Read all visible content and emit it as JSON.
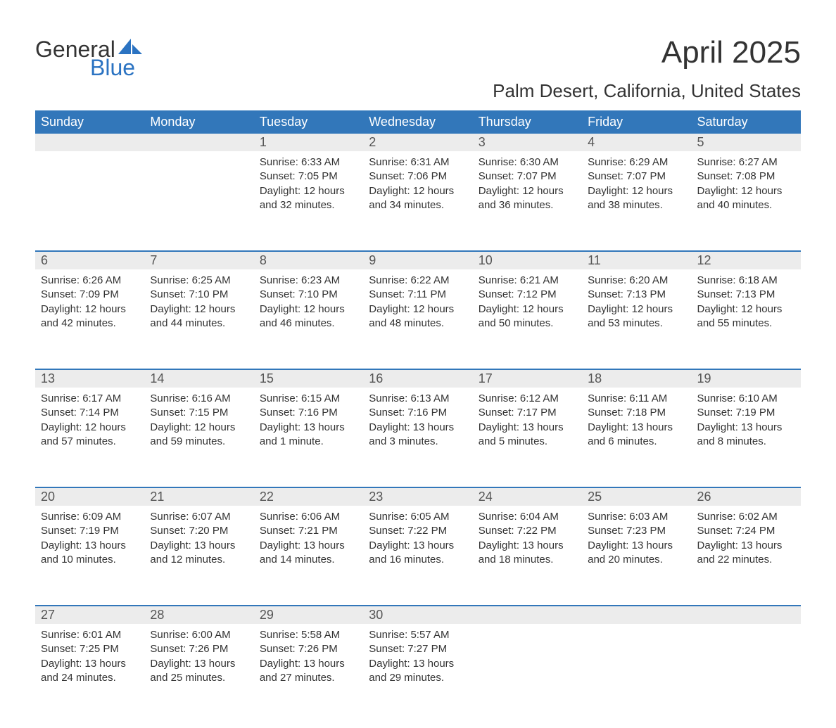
{
  "logo": {
    "word1": "General",
    "word2": "Blue"
  },
  "title": "April 2025",
  "location": "Palm Desert, California, United States",
  "colors": {
    "header_bg": "#3277ba",
    "header_text": "#ffffff",
    "daynum_bg": "#ececec",
    "rule": "#3277ba",
    "logo_blue": "#2b73c2",
    "text": "#333333"
  },
  "day_headers": [
    "Sunday",
    "Monday",
    "Tuesday",
    "Wednesday",
    "Thursday",
    "Friday",
    "Saturday"
  ],
  "labels": {
    "sunrise": "Sunrise: ",
    "sunset": "Sunset: ",
    "daylight": "Daylight: "
  },
  "weeks": [
    [
      null,
      null,
      {
        "n": "1",
        "sunrise": "6:33 AM",
        "sunset": "7:05 PM",
        "daylight": "12 hours and 32 minutes."
      },
      {
        "n": "2",
        "sunrise": "6:31 AM",
        "sunset": "7:06 PM",
        "daylight": "12 hours and 34 minutes."
      },
      {
        "n": "3",
        "sunrise": "6:30 AM",
        "sunset": "7:07 PM",
        "daylight": "12 hours and 36 minutes."
      },
      {
        "n": "4",
        "sunrise": "6:29 AM",
        "sunset": "7:07 PM",
        "daylight": "12 hours and 38 minutes."
      },
      {
        "n": "5",
        "sunrise": "6:27 AM",
        "sunset": "7:08 PM",
        "daylight": "12 hours and 40 minutes."
      }
    ],
    [
      {
        "n": "6",
        "sunrise": "6:26 AM",
        "sunset": "7:09 PM",
        "daylight": "12 hours and 42 minutes."
      },
      {
        "n": "7",
        "sunrise": "6:25 AM",
        "sunset": "7:10 PM",
        "daylight": "12 hours and 44 minutes."
      },
      {
        "n": "8",
        "sunrise": "6:23 AM",
        "sunset": "7:10 PM",
        "daylight": "12 hours and 46 minutes."
      },
      {
        "n": "9",
        "sunrise": "6:22 AM",
        "sunset": "7:11 PM",
        "daylight": "12 hours and 48 minutes."
      },
      {
        "n": "10",
        "sunrise": "6:21 AM",
        "sunset": "7:12 PM",
        "daylight": "12 hours and 50 minutes."
      },
      {
        "n": "11",
        "sunrise": "6:20 AM",
        "sunset": "7:13 PM",
        "daylight": "12 hours and 53 minutes."
      },
      {
        "n": "12",
        "sunrise": "6:18 AM",
        "sunset": "7:13 PM",
        "daylight": "12 hours and 55 minutes."
      }
    ],
    [
      {
        "n": "13",
        "sunrise": "6:17 AM",
        "sunset": "7:14 PM",
        "daylight": "12 hours and 57 minutes."
      },
      {
        "n": "14",
        "sunrise": "6:16 AM",
        "sunset": "7:15 PM",
        "daylight": "12 hours and 59 minutes."
      },
      {
        "n": "15",
        "sunrise": "6:15 AM",
        "sunset": "7:16 PM",
        "daylight": "13 hours and 1 minute."
      },
      {
        "n": "16",
        "sunrise": "6:13 AM",
        "sunset": "7:16 PM",
        "daylight": "13 hours and 3 minutes."
      },
      {
        "n": "17",
        "sunrise": "6:12 AM",
        "sunset": "7:17 PM",
        "daylight": "13 hours and 5 minutes."
      },
      {
        "n": "18",
        "sunrise": "6:11 AM",
        "sunset": "7:18 PM",
        "daylight": "13 hours and 6 minutes."
      },
      {
        "n": "19",
        "sunrise": "6:10 AM",
        "sunset": "7:19 PM",
        "daylight": "13 hours and 8 minutes."
      }
    ],
    [
      {
        "n": "20",
        "sunrise": "6:09 AM",
        "sunset": "7:19 PM",
        "daylight": "13 hours and 10 minutes."
      },
      {
        "n": "21",
        "sunrise": "6:07 AM",
        "sunset": "7:20 PM",
        "daylight": "13 hours and 12 minutes."
      },
      {
        "n": "22",
        "sunrise": "6:06 AM",
        "sunset": "7:21 PM",
        "daylight": "13 hours and 14 minutes."
      },
      {
        "n": "23",
        "sunrise": "6:05 AM",
        "sunset": "7:22 PM",
        "daylight": "13 hours and 16 minutes."
      },
      {
        "n": "24",
        "sunrise": "6:04 AM",
        "sunset": "7:22 PM",
        "daylight": "13 hours and 18 minutes."
      },
      {
        "n": "25",
        "sunrise": "6:03 AM",
        "sunset": "7:23 PM",
        "daylight": "13 hours and 20 minutes."
      },
      {
        "n": "26",
        "sunrise": "6:02 AM",
        "sunset": "7:24 PM",
        "daylight": "13 hours and 22 minutes."
      }
    ],
    [
      {
        "n": "27",
        "sunrise": "6:01 AM",
        "sunset": "7:25 PM",
        "daylight": "13 hours and 24 minutes."
      },
      {
        "n": "28",
        "sunrise": "6:00 AM",
        "sunset": "7:26 PM",
        "daylight": "13 hours and 25 minutes."
      },
      {
        "n": "29",
        "sunrise": "5:58 AM",
        "sunset": "7:26 PM",
        "daylight": "13 hours and 27 minutes."
      },
      {
        "n": "30",
        "sunrise": "5:57 AM",
        "sunset": "7:27 PM",
        "daylight": "13 hours and 29 minutes."
      },
      null,
      null,
      null
    ]
  ]
}
